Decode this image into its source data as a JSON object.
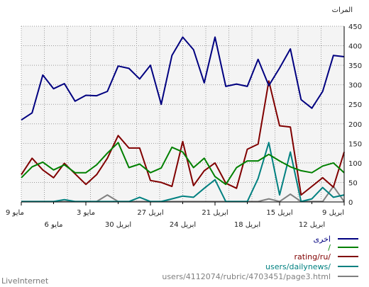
{
  "chart_data": {
    "type": "line",
    "ylabel": "المرات",
    "ylim": [
      0,
      450
    ],
    "y_ticks": [
      0,
      50,
      100,
      150,
      200,
      250,
      300,
      350,
      400,
      450
    ],
    "grid": true,
    "x_axis_direction": "right-to-left",
    "x_ticks_top_row": [
      "9 مايو",
      "3 مايو",
      "27 ابريل",
      "21 ابريل",
      "15 ابريل",
      "9 ابريل"
    ],
    "x_ticks_bottom_row": [
      "6 مايو",
      "30 ابريل",
      "24 ابريل",
      "18 ابريل",
      "12 ابريل"
    ],
    "legend_position": "bottom-right",
    "series": [
      {
        "name": "اخرى",
        "color": "#000080",
        "values": [
          210,
          228,
          325,
          290,
          303,
          258,
          273,
          272,
          283,
          348,
          342,
          315,
          350,
          250,
          375,
          422,
          390,
          305,
          422,
          296,
          302,
          296,
          365,
          298,
          343,
          392,
          262,
          240,
          283,
          375,
          372
        ]
      },
      {
        "name": "/",
        "color": "#008000",
        "values": [
          62,
          90,
          102,
          82,
          95,
          75,
          75,
          95,
          125,
          152,
          88,
          97,
          75,
          87,
          140,
          128,
          88,
          112,
          65,
          45,
          88,
          105,
          105,
          122,
          105,
          90,
          80,
          75,
          92,
          100,
          75
        ]
      },
      {
        "name": "rating/ru/",
        "color": "#800000",
        "values": [
          70,
          112,
          82,
          62,
          99,
          72,
          45,
          70,
          112,
          170,
          138,
          138,
          55,
          50,
          40,
          155,
          42,
          80,
          100,
          48,
          35,
          135,
          148,
          310,
          195,
          192,
          18,
          40,
          62,
          38,
          128
        ]
      },
      {
        "name": "users/dailynews/",
        "color": "#008080",
        "values": [
          1,
          1,
          1,
          1,
          6,
          1,
          1,
          1,
          1,
          1,
          1,
          12,
          1,
          1,
          8,
          15,
          12,
          35,
          57,
          1,
          1,
          1,
          60,
          152,
          18,
          128,
          1,
          8,
          37,
          12,
          18
        ]
      },
      {
        "name": "users/4112074/rubric/4703451/page3.html",
        "color": "#808080",
        "values": [
          1,
          1,
          1,
          1,
          1,
          1,
          1,
          1,
          18,
          1,
          1,
          1,
          1,
          1,
          1,
          1,
          1,
          1,
          1,
          1,
          1,
          1,
          1,
          8,
          1,
          20,
          1,
          1,
          1,
          40,
          1
        ]
      }
    ]
  },
  "brand": "LiveInternet"
}
